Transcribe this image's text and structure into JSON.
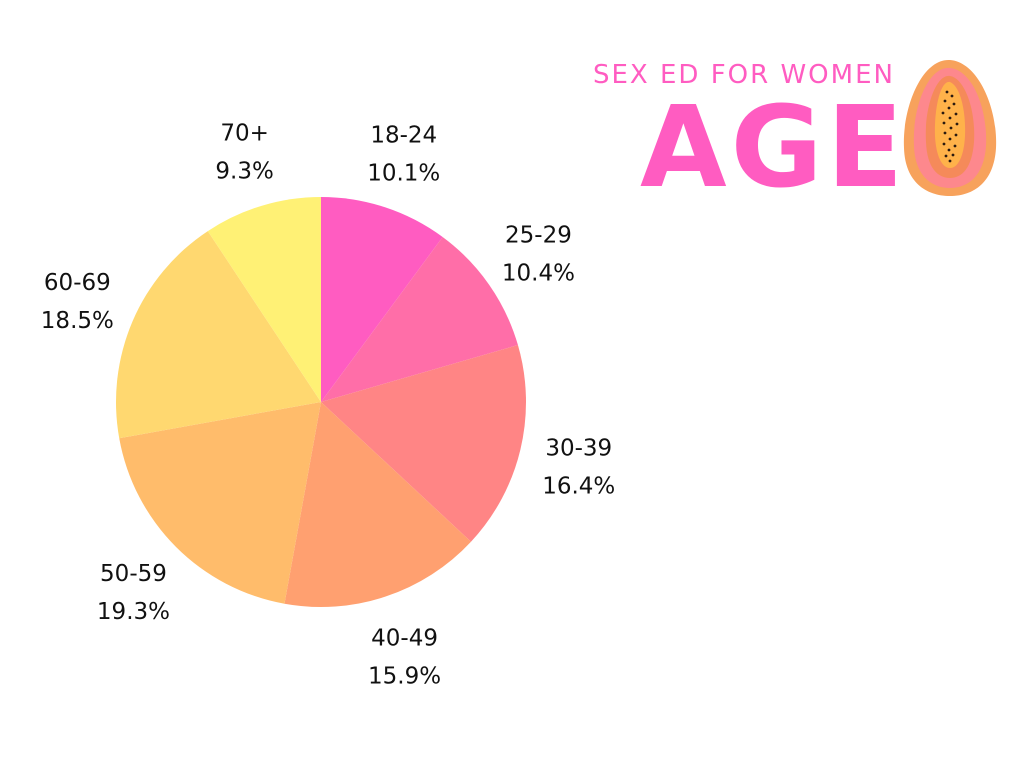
{
  "header": {
    "subtitle": "SEX ED FOR WOMEN",
    "title": "AGE",
    "illustration_icon": "papaya-icon"
  },
  "chart_data": {
    "type": "pie",
    "categories": [
      "18-24",
      "25-29",
      "30-39",
      "40-49",
      "50-59",
      "60-69",
      "70+"
    ],
    "values": [
      10.1,
      10.4,
      16.4,
      15.9,
      19.3,
      18.5,
      9.3
    ],
    "value_labels": [
      "10.1%",
      "10.4%",
      "16.4%",
      "15.9%",
      "19.3%",
      "18.5%",
      "9.3%"
    ],
    "colors": [
      "#ff5cc1",
      "#ff6ea8",
      "#ff8585",
      "#ffa070",
      "#ffbc6b",
      "#ffd870",
      "#fff175"
    ],
    "start": "12 o'clock",
    "direction": "clockwise",
    "legend": "none"
  }
}
